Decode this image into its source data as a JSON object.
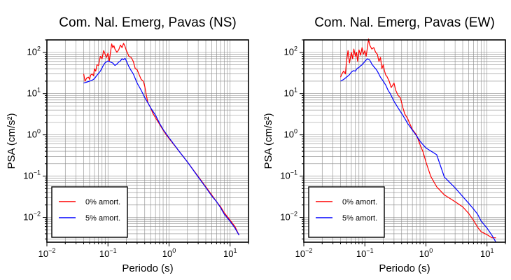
{
  "chart_data": [
    {
      "type": "line",
      "title": "Com. Nal. Emerg, Pavas (NS)",
      "xlabel": "Periodo (s)",
      "ylabel": "PSA (cm/s²)",
      "x_scale": "log",
      "y_scale": "log",
      "xlim": [
        0.01,
        20
      ],
      "ylim": [
        0.0025,
        200
      ],
      "grid": true,
      "legend_position": "bottom-left",
      "x_ticks": [
        {
          "value": 0.01,
          "base": "10",
          "exp": "−2"
        },
        {
          "value": 0.1,
          "base": "10",
          "exp": "−1"
        },
        {
          "value": 1,
          "base": "10",
          "exp": "0"
        },
        {
          "value": 10,
          "base": "10",
          "exp": "1"
        }
      ],
      "y_ticks": [
        {
          "value": 0.01,
          "base": "10",
          "exp": "−2"
        },
        {
          "value": 0.1,
          "base": "10",
          "exp": "−1"
        },
        {
          "value": 1,
          "base": "10",
          "exp": "0"
        },
        {
          "value": 10,
          "base": "10",
          "exp": "1"
        },
        {
          "value": 100,
          "base": "10",
          "exp": "2"
        }
      ],
      "series": [
        {
          "name": "0% amort.",
          "color": "#ff0000",
          "x": [
            0.04,
            0.042,
            0.045,
            0.048,
            0.05,
            0.052,
            0.055,
            0.058,
            0.06,
            0.063,
            0.066,
            0.07,
            0.075,
            0.08,
            0.085,
            0.09,
            0.095,
            0.1,
            0.105,
            0.11,
            0.115,
            0.12,
            0.125,
            0.13,
            0.14,
            0.15,
            0.16,
            0.17,
            0.18,
            0.19,
            0.2,
            0.21,
            0.22,
            0.24,
            0.26,
            0.28,
            0.3,
            0.32,
            0.35,
            0.38,
            0.4,
            0.42,
            0.45,
            0.5,
            0.55,
            0.6,
            0.7,
            0.8,
            0.9,
            1.0,
            1.2,
            1.5,
            2.0,
            3.0,
            4.0,
            5.0,
            6.0,
            7.0,
            8.0,
            10.0,
            12.0,
            14.0
          ],
          "y": [
            30,
            20,
            24,
            25,
            22,
            28,
            30,
            27,
            40,
            35,
            50,
            48,
            80,
            70,
            110,
            90,
            75,
            95,
            60,
            100,
            160,
            130,
            145,
            120,
            100,
            115,
            150,
            130,
            165,
            140,
            110,
            95,
            80,
            75,
            60,
            40,
            38,
            30,
            22,
            20,
            15,
            10,
            6,
            4.5,
            3.2,
            2.6,
            1.8,
            1.3,
            1.0,
            0.82,
            0.58,
            0.38,
            0.22,
            0.098,
            0.055,
            0.035,
            0.024,
            0.018,
            0.013,
            0.0085,
            0.006,
            0.0037
          ]
        },
        {
          "name": "5% amort.",
          "color": "#0000ff",
          "x": [
            0.04,
            0.045,
            0.05,
            0.055,
            0.06,
            0.065,
            0.07,
            0.075,
            0.08,
            0.085,
            0.09,
            0.1,
            0.11,
            0.12,
            0.13,
            0.14,
            0.15,
            0.16,
            0.17,
            0.18,
            0.19,
            0.2,
            0.22,
            0.24,
            0.26,
            0.28,
            0.3,
            0.35,
            0.4,
            0.45,
            0.5,
            0.6,
            0.7,
            0.8,
            1.0,
            1.5,
            2.0,
            3.0,
            4.0,
            5.0,
            6.0,
            7.0,
            8.0,
            10.0,
            12.0,
            14.0
          ],
          "y": [
            18,
            19,
            20,
            21,
            23,
            27,
            31,
            35,
            42,
            50,
            56,
            62,
            58,
            55,
            48,
            52,
            58,
            62,
            70,
            66,
            72,
            62,
            45,
            36,
            30,
            23,
            18,
            12,
            8,
            6,
            4.5,
            3.0,
            1.9,
            1.35,
            0.85,
            0.38,
            0.22,
            0.095,
            0.053,
            0.033,
            0.024,
            0.017,
            0.012,
            0.008,
            0.0055,
            0.0037
          ]
        }
      ]
    },
    {
      "type": "line",
      "title": "Com. Nal. Emerg, Pavas (EW)",
      "xlabel": "Periodo (s)",
      "ylabel": "PSA (cm/s²)",
      "x_scale": "log",
      "y_scale": "log",
      "xlim": [
        0.01,
        20
      ],
      "ylim": [
        0.0025,
        200
      ],
      "grid": true,
      "legend_position": "bottom-left",
      "x_ticks": [
        {
          "value": 0.01,
          "base": "10",
          "exp": "−2"
        },
        {
          "value": 0.1,
          "base": "10",
          "exp": "−1"
        },
        {
          "value": 1,
          "base": "10",
          "exp": "0"
        },
        {
          "value": 10,
          "base": "10",
          "exp": "1"
        }
      ],
      "y_ticks": [
        {
          "value": 0.01,
          "base": "10",
          "exp": "−2"
        },
        {
          "value": 0.1,
          "base": "10",
          "exp": "−1"
        },
        {
          "value": 1,
          "base": "10",
          "exp": "0"
        },
        {
          "value": 10,
          "base": "10",
          "exp": "1"
        },
        {
          "value": 100,
          "base": "10",
          "exp": "2"
        }
      ],
      "series": [
        {
          "name": "0% amort.",
          "color": "#ff0000",
          "x": [
            0.04,
            0.042,
            0.045,
            0.048,
            0.05,
            0.053,
            0.056,
            0.06,
            0.063,
            0.066,
            0.07,
            0.073,
            0.076,
            0.08,
            0.085,
            0.09,
            0.095,
            0.1,
            0.105,
            0.11,
            0.115,
            0.12,
            0.13,
            0.14,
            0.15,
            0.16,
            0.17,
            0.18,
            0.19,
            0.2,
            0.21,
            0.22,
            0.23,
            0.25,
            0.27,
            0.3,
            0.32,
            0.35,
            0.38,
            0.4,
            0.42,
            0.45,
            0.5,
            0.55,
            0.6,
            0.7,
            0.8,
            0.9,
            1.0,
            1.2,
            1.5,
            2.0,
            3.0,
            4.0,
            5.0,
            6.0,
            7.0,
            8.0,
            10.0,
            12.0,
            14.0
          ],
          "y": [
            25,
            30,
            35,
            30,
            60,
            110,
            55,
            100,
            70,
            120,
            80,
            100,
            60,
            115,
            85,
            130,
            90,
            110,
            80,
            130,
            210,
            150,
            120,
            130,
            100,
            90,
            60,
            75,
            40,
            50,
            35,
            28,
            26,
            20,
            14,
            18,
            12,
            9,
            8,
            6,
            4.5,
            3.2,
            2.5,
            1.8,
            1.35,
            1.0,
            0.58,
            0.38,
            0.22,
            0.098,
            0.055,
            0.035,
            0.024,
            0.018,
            0.0125,
            0.0085,
            0.0058,
            0.0045,
            0.0038,
            0.0032,
            0.0032
          ]
        },
        {
          "name": "5% amort.",
          "color": "#0000ff",
          "x": [
            0.04,
            0.045,
            0.05,
            0.055,
            0.06,
            0.065,
            0.07,
            0.075,
            0.08,
            0.085,
            0.09,
            0.1,
            0.11,
            0.12,
            0.13,
            0.14,
            0.15,
            0.16,
            0.18,
            0.2,
            0.22,
            0.24,
            0.26,
            0.28,
            0.3,
            0.35,
            0.4,
            0.45,
            0.5,
            0.6,
            0.7,
            0.8,
            1.0,
            1.5,
            2.0,
            3.0,
            4.0,
            5.0,
            6.0,
            7.0,
            8.0,
            10.0,
            12.0,
            14.0
          ],
          "y": [
            20,
            22,
            25,
            28,
            33,
            36,
            35,
            41,
            43,
            47,
            50,
            60,
            70,
            65,
            52,
            45,
            40,
            35,
            25,
            20,
            16,
            12,
            10,
            8,
            6.5,
            4.5,
            3.3,
            2.5,
            1.9,
            1.3,
            0.95,
            0.7,
            0.48,
            0.33,
            0.095,
            0.052,
            0.032,
            0.022,
            0.016,
            0.012,
            0.0082,
            0.0055,
            0.0037,
            0.0025
          ]
        }
      ]
    }
  ]
}
